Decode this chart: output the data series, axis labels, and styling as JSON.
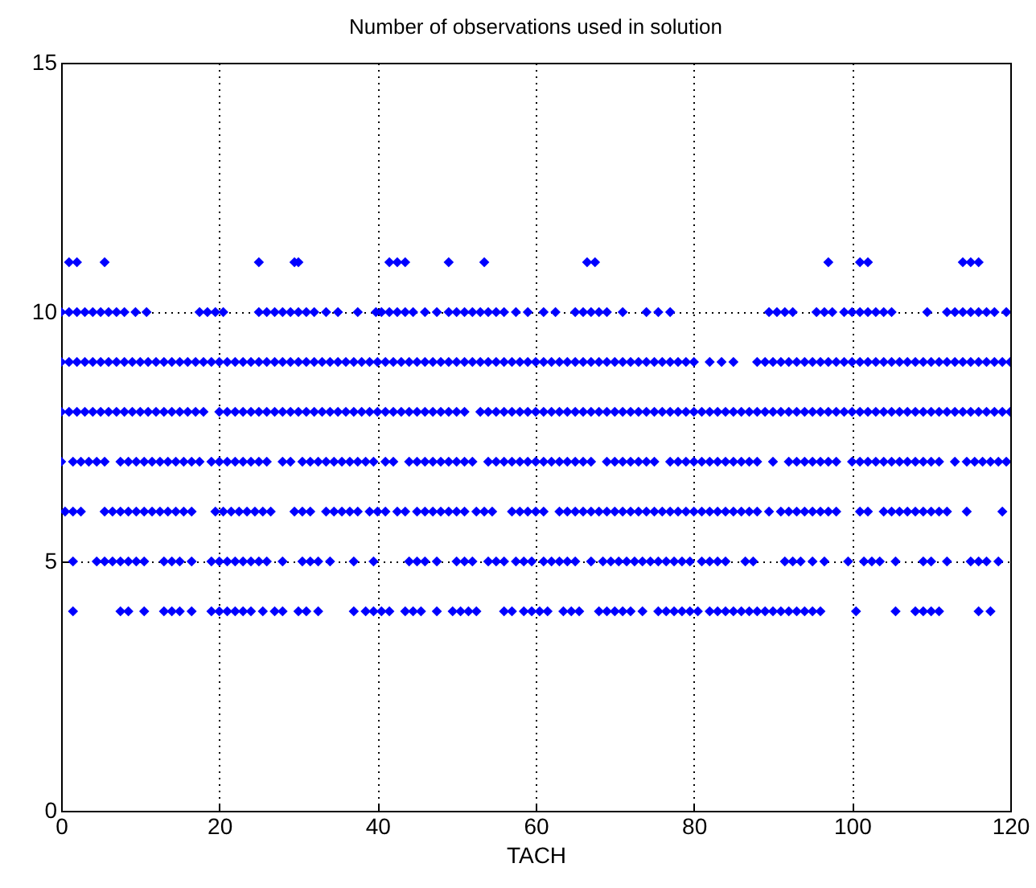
{
  "chart_data": {
    "type": "scatter",
    "title": "Number of observations used in solution",
    "xlabel": "TACH",
    "xlim": [
      0,
      120
    ],
    "xticks": [
      0,
      20,
      40,
      60,
      80,
      100,
      120
    ],
    "ylim": [
      0,
      15
    ],
    "yticks": [
      0,
      5,
      10,
      15
    ],
    "grid": true,
    "marker": "diamond",
    "series": [
      {
        "color": "#0000ff",
        "x": [
          1,
          2,
          5.5,
          25,
          29.5,
          30,
          41.5,
          42.5,
          43.5,
          49,
          53.5,
          66.5,
          67.5,
          97,
          101,
          102,
          114,
          115,
          116
        ],
        "values": [
          11,
          11,
          11,
          11,
          11,
          11,
          11,
          11,
          11,
          11,
          11,
          11,
          11,
          11,
          11,
          11,
          11,
          11,
          11
        ]
      },
      {
        "color": "#0000ff",
        "x": [
          0,
          1,
          2,
          3,
          4,
          5,
          6,
          7,
          8,
          9.4,
          10.8,
          17.5,
          18.5,
          19.5,
          20.5,
          25,
          26,
          27,
          28,
          29,
          30,
          31,
          32,
          33.5,
          35,
          37.5,
          39.8,
          40.5,
          41.5,
          42.5,
          43.5,
          44.5,
          46,
          47.5,
          49,
          50,
          51,
          52,
          53,
          54,
          55,
          56,
          57.5,
          59,
          61,
          62.5,
          65,
          66,
          67,
          68,
          69,
          71,
          74,
          75.5,
          77,
          89.5,
          90.5,
          91.5,
          92.5,
          95.5,
          96.5,
          97.5,
          99,
          100,
          101,
          102,
          103,
          104,
          105,
          109.5,
          112,
          113,
          114,
          115,
          116,
          117,
          118,
          119.5
        ],
        "values": [
          10,
          10,
          10,
          10,
          10,
          10,
          10,
          10,
          10,
          10,
          10,
          10,
          10,
          10,
          10,
          10,
          10,
          10,
          10,
          10,
          10,
          10,
          10,
          10,
          10,
          10,
          10,
          10,
          10,
          10,
          10,
          10,
          10,
          10,
          10,
          10,
          10,
          10,
          10,
          10,
          10,
          10,
          10,
          10,
          10,
          10,
          10,
          10,
          10,
          10,
          10,
          10,
          10,
          10,
          10,
          10,
          10,
          10,
          10,
          10,
          10,
          10,
          10,
          10,
          10,
          10,
          10,
          10,
          10,
          10,
          10,
          10,
          10,
          10,
          10,
          10,
          10,
          10
        ]
      },
      {
        "color": "#0000ff",
        "x": [
          0,
          1,
          2,
          3,
          4,
          5,
          6,
          7,
          8,
          9,
          10,
          11,
          12,
          13,
          14,
          15,
          16,
          17,
          18,
          19,
          20,
          21,
          22,
          23,
          24,
          25,
          26,
          27,
          28,
          29,
          30,
          31,
          32,
          33,
          34,
          35,
          36,
          37,
          38,
          39,
          40,
          41,
          42,
          43,
          44,
          45,
          46,
          47,
          48,
          49,
          50,
          51,
          52,
          53,
          54,
          55,
          56,
          57,
          58,
          59,
          60,
          61,
          62,
          63,
          64,
          65,
          66,
          67,
          68,
          69,
          70,
          71,
          72,
          73,
          74,
          75,
          76,
          77,
          78,
          79,
          80,
          82,
          83.5,
          85,
          88,
          89,
          90,
          91,
          92,
          93,
          94,
          95,
          96,
          97,
          98,
          99,
          100,
          101,
          102,
          103,
          104,
          105,
          106,
          107,
          108,
          109,
          110,
          111,
          112,
          113,
          114,
          115,
          116,
          117,
          118,
          119,
          120
        ],
        "values": [
          9,
          9,
          9,
          9,
          9,
          9,
          9,
          9,
          9,
          9,
          9,
          9,
          9,
          9,
          9,
          9,
          9,
          9,
          9,
          9,
          9,
          9,
          9,
          9,
          9,
          9,
          9,
          9,
          9,
          9,
          9,
          9,
          9,
          9,
          9,
          9,
          9,
          9,
          9,
          9,
          9,
          9,
          9,
          9,
          9,
          9,
          9,
          9,
          9,
          9,
          9,
          9,
          9,
          9,
          9,
          9,
          9,
          9,
          9,
          9,
          9,
          9,
          9,
          9,
          9,
          9,
          9,
          9,
          9,
          9,
          9,
          9,
          9,
          9,
          9,
          9,
          9,
          9,
          9,
          9,
          9,
          9,
          9,
          9,
          9,
          9,
          9,
          9,
          9,
          9,
          9,
          9,
          9,
          9,
          9,
          9,
          9,
          9,
          9,
          9,
          9,
          9,
          9,
          9,
          9,
          9,
          9,
          9,
          9,
          9,
          9,
          9,
          9,
          9,
          9,
          9,
          9
        ]
      },
      {
        "color": "#0000ff",
        "x": [
          0,
          1,
          2,
          3,
          4,
          5,
          6,
          7,
          8,
          9,
          10,
          11,
          12,
          13,
          14,
          15,
          16,
          17,
          18,
          20,
          21,
          22,
          23,
          24,
          25,
          26,
          27,
          28,
          29,
          30,
          31,
          32,
          33,
          34,
          35,
          36,
          37,
          38,
          39,
          40,
          41,
          42,
          43,
          44,
          45,
          46,
          47,
          48,
          49,
          50,
          51,
          53,
          54,
          55,
          56,
          57,
          58,
          59,
          60,
          61,
          62,
          63,
          64,
          65,
          66,
          67,
          68,
          69,
          70,
          71,
          72,
          73,
          74,
          75,
          76,
          77,
          78,
          79,
          80,
          81,
          82,
          83,
          84,
          85,
          86,
          87,
          88,
          89,
          90,
          91,
          92,
          93,
          94,
          95,
          96,
          97,
          98,
          99,
          100,
          101,
          102,
          103,
          104,
          105,
          106,
          107,
          108,
          109,
          110,
          111,
          112,
          113,
          114,
          115,
          116,
          117,
          118,
          119,
          120
        ],
        "values": [
          8,
          8,
          8,
          8,
          8,
          8,
          8,
          8,
          8,
          8,
          8,
          8,
          8,
          8,
          8,
          8,
          8,
          8,
          8,
          8,
          8,
          8,
          8,
          8,
          8,
          8,
          8,
          8,
          8,
          8,
          8,
          8,
          8,
          8,
          8,
          8,
          8,
          8,
          8,
          8,
          8,
          8,
          8,
          8,
          8,
          8,
          8,
          8,
          8,
          8,
          8,
          8,
          8,
          8,
          8,
          8,
          8,
          8,
          8,
          8,
          8,
          8,
          8,
          8,
          8,
          8,
          8,
          8,
          8,
          8,
          8,
          8,
          8,
          8,
          8,
          8,
          8,
          8,
          8,
          8,
          8,
          8,
          8,
          8,
          8,
          8,
          8,
          8,
          8,
          8,
          8,
          8,
          8,
          8,
          8,
          8,
          8,
          8,
          8,
          8,
          8,
          8,
          8,
          8,
          8,
          8,
          8,
          8,
          8,
          8,
          8,
          8,
          8,
          8,
          8,
          8,
          8,
          8,
          8
        ]
      },
      {
        "color": "#0000ff",
        "x": [
          0,
          1.5,
          2.5,
          3.5,
          4.5,
          5.5,
          7.5,
          8.5,
          9.5,
          10.5,
          11.5,
          12.5,
          13.5,
          14.5,
          15.5,
          16.5,
          17.5,
          19,
          20,
          21,
          22,
          23,
          24,
          25,
          26,
          28,
          29,
          30.5,
          31.5,
          32.5,
          33.5,
          34.5,
          35.5,
          36.5,
          37.5,
          38.5,
          39.5,
          41,
          42,
          44,
          45,
          46,
          47,
          48,
          49,
          50,
          51,
          52,
          54,
          55,
          56,
          57,
          58,
          59,
          60,
          61,
          62,
          63,
          64,
          65,
          66,
          67,
          69,
          70,
          71,
          72,
          73,
          74,
          75,
          77,
          78,
          79,
          80,
          81,
          82,
          83,
          84,
          85,
          86,
          87,
          88,
          90,
          92,
          93,
          94,
          95,
          96,
          97,
          98,
          100,
          101,
          102,
          103,
          104,
          105,
          106,
          107,
          108,
          109,
          110,
          111,
          113,
          114.5,
          115.5,
          116.5,
          117.5,
          118.5,
          119.5
        ],
        "values": [
          7,
          7,
          7,
          7,
          7,
          7,
          7,
          7,
          7,
          7,
          7,
          7,
          7,
          7,
          7,
          7,
          7,
          7,
          7,
          7,
          7,
          7,
          7,
          7,
          7,
          7,
          7,
          7,
          7,
          7,
          7,
          7,
          7,
          7,
          7,
          7,
          7,
          7,
          7,
          7,
          7,
          7,
          7,
          7,
          7,
          7,
          7,
          7,
          7,
          7,
          7,
          7,
          7,
          7,
          7,
          7,
          7,
          7,
          7,
          7,
          7,
          7,
          7,
          7,
          7,
          7,
          7,
          7,
          7,
          7,
          7,
          7,
          7,
          7,
          7,
          7,
          7,
          7,
          7,
          7,
          7,
          7,
          7,
          7,
          7,
          7,
          7,
          7,
          7,
          7,
          7,
          7,
          7,
          7,
          7,
          7,
          7,
          7,
          7,
          7,
          7,
          7,
          7,
          7,
          7,
          7,
          7,
          7
        ]
      },
      {
        "color": "#0000ff",
        "x": [
          0.5,
          1.5,
          2.5,
          5.5,
          6.5,
          7.5,
          8.5,
          9.5,
          10.5,
          11.5,
          12.5,
          13.5,
          14.5,
          15.5,
          16.5,
          19.5,
          20.5,
          21.5,
          22.5,
          23.5,
          24.5,
          25.5,
          26.5,
          29.5,
          30.5,
          31.5,
          33.5,
          34.5,
          35.5,
          36.5,
          37.5,
          39,
          40,
          41,
          42.5,
          43.5,
          45,
          46,
          47,
          48,
          49,
          50,
          51,
          52.5,
          53.5,
          54.5,
          57,
          58,
          59,
          60,
          61,
          63,
          64,
          65,
          66,
          67,
          68,
          69,
          70,
          71,
          72,
          73,
          74,
          75,
          76,
          77,
          78,
          79,
          80,
          81,
          82,
          83,
          84,
          85,
          86,
          87,
          88,
          89.5,
          91,
          92,
          93,
          94,
          95,
          96,
          97,
          98,
          101,
          102,
          104,
          105,
          106,
          107,
          108,
          109,
          110,
          111,
          112,
          114.5,
          119
        ],
        "values": [
          6,
          6,
          6,
          6,
          6,
          6,
          6,
          6,
          6,
          6,
          6,
          6,
          6,
          6,
          6,
          6,
          6,
          6,
          6,
          6,
          6,
          6,
          6,
          6,
          6,
          6,
          6,
          6,
          6,
          6,
          6,
          6,
          6,
          6,
          6,
          6,
          6,
          6,
          6,
          6,
          6,
          6,
          6,
          6,
          6,
          6,
          6,
          6,
          6,
          6,
          6,
          6,
          6,
          6,
          6,
          6,
          6,
          6,
          6,
          6,
          6,
          6,
          6,
          6,
          6,
          6,
          6,
          6,
          6,
          6,
          6,
          6,
          6,
          6,
          6,
          6,
          6,
          6,
          6,
          6,
          6,
          6,
          6,
          6,
          6,
          6,
          6,
          6,
          6,
          6,
          6,
          6,
          6,
          6,
          6,
          6,
          6,
          6,
          6
        ]
      },
      {
        "color": "#0000ff",
        "x": [
          1.5,
          4.5,
          5.5,
          6.5,
          7.5,
          8.5,
          9.5,
          10.5,
          13,
          14,
          15,
          16.5,
          19,
          20,
          21,
          22,
          23,
          24,
          25,
          26,
          28,
          30.5,
          31.5,
          32.5,
          34,
          37,
          39.5,
          44,
          45,
          46,
          47.5,
          50,
          51,
          52,
          54,
          55,
          56,
          57.5,
          58.5,
          59.5,
          61,
          62,
          63,
          64,
          65,
          67,
          68.5,
          69.5,
          70.5,
          71.5,
          72.5,
          73.5,
          74.5,
          75.5,
          76.5,
          77.5,
          78.5,
          79.5,
          81,
          82,
          83,
          84,
          86.5,
          87.5,
          91.5,
          92.5,
          93.5,
          95,
          96.5,
          99.5,
          101.5,
          102.5,
          103.5,
          105.5,
          109,
          110,
          112,
          115,
          116,
          117,
          118.5
        ],
        "values": [
          5,
          5,
          5,
          5,
          5,
          5,
          5,
          5,
          5,
          5,
          5,
          5,
          5,
          5,
          5,
          5,
          5,
          5,
          5,
          5,
          5,
          5,
          5,
          5,
          5,
          5,
          5,
          5,
          5,
          5,
          5,
          5,
          5,
          5,
          5,
          5,
          5,
          5,
          5,
          5,
          5,
          5,
          5,
          5,
          5,
          5,
          5,
          5,
          5,
          5,
          5,
          5,
          5,
          5,
          5,
          5,
          5,
          5,
          5,
          5,
          5,
          5,
          5,
          5,
          5,
          5,
          5,
          5,
          5,
          5,
          5,
          5,
          5,
          5,
          5,
          5,
          5,
          5,
          5,
          5,
          5
        ]
      },
      {
        "color": "#0000ff",
        "x": [
          1.5,
          7.5,
          8.5,
          10.5,
          13,
          14,
          15,
          16.5,
          19,
          20,
          21,
          22,
          23,
          24,
          25.5,
          27,
          28,
          30,
          31,
          32.5,
          37,
          38.5,
          39.5,
          40.5,
          41.5,
          43.5,
          44.5,
          45.5,
          47.5,
          49.5,
          50.5,
          51.5,
          52.5,
          56,
          57,
          58.5,
          59.5,
          60.5,
          61.5,
          63.5,
          64.5,
          65.5,
          68,
          69,
          70,
          71,
          72,
          73.5,
          75.5,
          76.5,
          77.5,
          78.5,
          79.5,
          80.5,
          82,
          83,
          84,
          85,
          86,
          87,
          88,
          89,
          90,
          91,
          92,
          93,
          94,
          95,
          96,
          100.5,
          105.5,
          108,
          109,
          110,
          111,
          116,
          117.5
        ],
        "values": [
          4,
          4,
          4,
          4,
          4,
          4,
          4,
          4,
          4,
          4,
          4,
          4,
          4,
          4,
          4,
          4,
          4,
          4,
          4,
          4,
          4,
          4,
          4,
          4,
          4,
          4,
          4,
          4,
          4,
          4,
          4,
          4,
          4,
          4,
          4,
          4,
          4,
          4,
          4,
          4,
          4,
          4,
          4,
          4,
          4,
          4,
          4,
          4,
          4,
          4,
          4,
          4,
          4,
          4,
          4,
          4,
          4,
          4,
          4,
          4,
          4,
          4,
          4,
          4,
          4,
          4,
          4,
          4,
          4,
          4,
          4,
          4,
          4,
          4,
          4,
          4,
          4
        ]
      }
    ]
  }
}
